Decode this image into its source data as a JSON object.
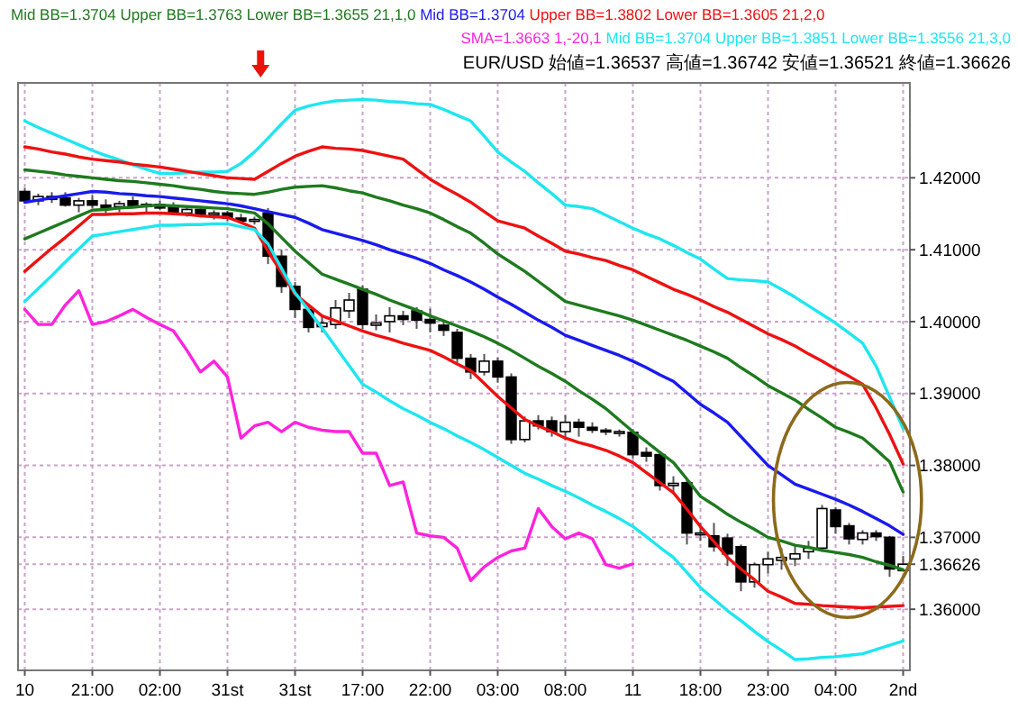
{
  "chart_data": {
    "type": "candlestick",
    "categories": [
      "10",
      null,
      null,
      null,
      null,
      "21:00",
      null,
      null,
      null,
      null,
      "02:00",
      null,
      null,
      null,
      null,
      "31st",
      null,
      null,
      null,
      null,
      "31st",
      null,
      null,
      null,
      null,
      "17:00",
      null,
      null,
      null,
      null,
      "22:00",
      null,
      null,
      null,
      null,
      "03:00",
      null,
      null,
      null,
      null,
      "08:00",
      null,
      null,
      null,
      null,
      "11",
      null,
      null,
      null,
      null,
      "18:00",
      null,
      null,
      null,
      null,
      "23:00",
      null,
      null,
      null,
      null,
      "04:00",
      null,
      null,
      null,
      null,
      "2nd"
    ],
    "ohlc": [
      [
        1.4181,
        1.4186,
        1.4165,
        1.4168
      ],
      [
        1.4168,
        1.4178,
        1.4162,
        1.4174
      ],
      [
        1.4174,
        1.418,
        1.4165,
        1.417
      ],
      [
        1.4172,
        1.418,
        1.416,
        1.4162
      ],
      [
        1.4162,
        1.4172,
        1.4152,
        1.4168
      ],
      [
        1.4168,
        1.4176,
        1.4158,
        1.4162
      ],
      [
        1.4162,
        1.417,
        1.415,
        1.4158
      ],
      [
        1.416,
        1.4168,
        1.4152,
        1.4164
      ],
      [
        1.4168,
        1.4174,
        1.4158,
        1.416
      ],
      [
        1.416,
        1.4166,
        1.415,
        1.4163
      ],
      [
        1.4163,
        1.4168,
        1.4155,
        1.4158
      ],
      [
        1.416,
        1.4166,
        1.415,
        1.4151
      ],
      [
        1.4151,
        1.416,
        1.4146,
        1.4156
      ],
      [
        1.4156,
        1.416,
        1.4145,
        1.4149
      ],
      [
        1.4149,
        1.4155,
        1.4142,
        1.4151
      ],
      [
        1.4151,
        1.4154,
        1.414,
        1.4144
      ],
      [
        1.4144,
        1.415,
        1.4136,
        1.414
      ],
      [
        1.414,
        1.4146,
        1.4135,
        1.4142
      ],
      [
        1.4151,
        1.4158,
        1.408,
        1.4091
      ],
      [
        1.4091,
        1.41,
        1.404,
        1.4049
      ],
      [
        1.4049,
        1.4055,
        1.4005,
        1.4017
      ],
      [
        1.4017,
        1.4025,
        1.3985,
        1.3992
      ],
      [
        1.3993,
        1.401,
        1.3985,
        1.3998
      ],
      [
        1.3996,
        1.403,
        1.399,
        1.4019
      ],
      [
        1.4015,
        1.404,
        1.4005,
        1.403
      ],
      [
        1.4045,
        1.405,
        1.399,
        1.3996
      ],
      [
        1.3995,
        1.401,
        1.3988,
        1.3998
      ],
      [
        1.4,
        1.402,
        1.3985,
        1.4008
      ],
      [
        1.4008,
        1.4015,
        1.3995,
        1.4003
      ],
      [
        1.4015,
        1.402,
        1.399,
        1.4002
      ],
      [
        1.4003,
        1.4018,
        1.3985,
        1.3998
      ],
      [
        1.3995,
        1.4,
        1.398,
        1.3988
      ],
      [
        1.3985,
        1.399,
        1.394,
        1.3949
      ],
      [
        1.3949,
        1.3955,
        1.392,
        1.393
      ],
      [
        1.393,
        1.3955,
        1.3925,
        1.3945
      ],
      [
        1.3945,
        1.395,
        1.3915,
        1.3923
      ],
      [
        1.3923,
        1.3928,
        1.383,
        1.3836
      ],
      [
        1.3836,
        1.3868,
        1.3832,
        1.3862
      ],
      [
        1.3862,
        1.387,
        1.385,
        1.3855
      ],
      [
        1.3862,
        1.3868,
        1.384,
        1.3847
      ],
      [
        1.3847,
        1.387,
        1.3835,
        1.386
      ],
      [
        1.386,
        1.3865,
        1.384,
        1.3853
      ],
      [
        1.3853,
        1.386,
        1.3845,
        1.3849
      ],
      [
        1.3849,
        1.3852,
        1.3842,
        1.3847
      ],
      [
        1.3846,
        1.385,
        1.384,
        1.3847
      ],
      [
        1.3846,
        1.385,
        1.381,
        1.3815
      ],
      [
        1.3818,
        1.3825,
        1.3805,
        1.3813
      ],
      [
        1.3815,
        1.382,
        1.3765,
        1.3772
      ],
      [
        1.3772,
        1.3785,
        1.376,
        1.3775
      ],
      [
        1.3776,
        1.378,
        1.369,
        1.3706
      ],
      [
        1.3704,
        1.372,
        1.3695,
        1.3706
      ],
      [
        1.3702,
        1.372,
        1.368,
        1.3687
      ],
      [
        1.3699,
        1.3705,
        1.366,
        1.3677
      ],
      [
        1.3687,
        1.369,
        1.3625,
        1.3638
      ],
      [
        1.3638,
        1.3665,
        1.363,
        1.3662
      ],
      [
        1.3662,
        1.368,
        1.365,
        1.367
      ],
      [
        1.3668,
        1.3685,
        1.3655,
        1.3672
      ],
      [
        1.367,
        1.369,
        1.366,
        1.3677
      ],
      [
        1.368,
        1.3695,
        1.367,
        1.3685
      ],
      [
        1.3685,
        1.3745,
        1.368,
        1.374
      ],
      [
        1.3738,
        1.3742,
        1.3705,
        1.3715
      ],
      [
        1.3716,
        1.372,
        1.369,
        1.3698
      ],
      [
        1.3697,
        1.371,
        1.369,
        1.3706
      ],
      [
        1.3706,
        1.371,
        1.3695,
        1.3701
      ],
      [
        1.37,
        1.3702,
        1.3645,
        1.3656
      ],
      [
        1.36537,
        1.36742,
        1.36521,
        1.36626
      ]
    ],
    "series": [
      {
        "type": "line",
        "color": "#1ee6f0",
        "values": [
          1.4279,
          1.427,
          1.4262,
          1.4254,
          1.4246,
          1.4238,
          1.4231,
          1.4225,
          1.4218,
          1.4212,
          1.4206,
          1.4206,
          1.4207,
          1.4208,
          1.4208,
          1.4209,
          1.422,
          1.4236,
          1.4255,
          1.4275,
          1.4294,
          1.43,
          1.4304,
          1.4307,
          1.4308,
          1.4309,
          1.4308,
          1.4306,
          1.4305,
          1.4303,
          1.4302,
          1.4295,
          1.4287,
          1.4279,
          1.4258,
          1.4236,
          1.4222,
          1.4209,
          1.4193,
          1.4178,
          1.4162,
          1.416,
          1.4157,
          1.4148,
          1.4139,
          1.413,
          1.4122,
          1.4115,
          1.4106,
          1.4096,
          1.4087,
          1.4073,
          1.406,
          1.4058,
          1.4057,
          1.4055,
          1.4045,
          1.4034,
          1.4022,
          1.401,
          1.3998,
          1.3984,
          1.397,
          1.3938,
          1.3895,
          1.3851
        ]
      },
      {
        "type": "line",
        "color": "#ee1111",
        "values": [
          1.4243,
          1.424,
          1.4236,
          1.4233,
          1.4229,
          1.4226,
          1.4224,
          1.4222,
          1.4219,
          1.4217,
          1.4215,
          1.4212,
          1.4209,
          1.4206,
          1.4203,
          1.42,
          1.4199,
          1.4198,
          1.4209,
          1.422,
          1.423,
          1.4237,
          1.4243,
          1.4241,
          1.424,
          1.4238,
          1.4234,
          1.423,
          1.4226,
          1.4212,
          1.4198,
          1.4187,
          1.4177,
          1.4166,
          1.4153,
          1.414,
          1.4135,
          1.413,
          1.4119,
          1.4109,
          1.4098,
          1.4094,
          1.4089,
          1.4085,
          1.4078,
          1.4072,
          1.4063,
          1.4054,
          1.4045,
          1.4038,
          1.403,
          1.4021,
          1.4013,
          1.4003,
          1.3993,
          1.3983,
          1.3975,
          1.3966,
          1.3955,
          1.3945,
          1.3934,
          1.3924,
          1.3913,
          1.388,
          1.3843,
          1.3802
        ]
      },
      {
        "type": "line",
        "color": "#1e7a1e",
        "values": [
          1.4211,
          1.4209,
          1.4207,
          1.4204,
          1.4202,
          1.42,
          1.4198,
          1.4196,
          1.4195,
          1.4193,
          1.4191,
          1.4189,
          1.4186,
          1.4184,
          1.4181,
          1.4179,
          1.4178,
          1.4177,
          1.418,
          1.4184,
          1.4187,
          1.4188,
          1.4189,
          1.4186,
          1.4182,
          1.4179,
          1.4173,
          1.4168,
          1.4162,
          1.4157,
          1.4151,
          1.4142,
          1.4132,
          1.4123,
          1.4109,
          1.4094,
          1.4082,
          1.407,
          1.4056,
          1.4042,
          1.4028,
          1.4023,
          1.4018,
          1.4013,
          1.4008,
          1.4002,
          1.3995,
          1.3988,
          1.3981,
          1.3974,
          1.3966,
          1.3958,
          1.3949,
          1.3936,
          1.3924,
          1.3911,
          1.3901,
          1.3891,
          1.3878,
          1.3866,
          1.3853,
          1.3846,
          1.3838,
          1.3822,
          1.3805,
          1.3763
        ]
      },
      {
        "type": "line",
        "color": "#1a1aee",
        "values": [
          1.4166,
          1.4169,
          1.4172,
          1.4175,
          1.4178,
          1.4181,
          1.418,
          1.4178,
          1.4177,
          1.4175,
          1.4174,
          1.4172,
          1.417,
          1.4168,
          1.4166,
          1.4164,
          1.4161,
          1.4157,
          1.4153,
          1.4149,
          1.4145,
          1.4137,
          1.4128,
          1.4123,
          1.4118,
          1.4113,
          1.4107,
          1.41,
          1.4094,
          1.4088,
          1.4081,
          1.4072,
          1.4064,
          1.4055,
          1.4045,
          1.4034,
          1.4024,
          1.4013,
          1.4002,
          1.3992,
          1.3981,
          1.3974,
          1.3967,
          1.396,
          1.3953,
          1.3945,
          1.3936,
          1.3926,
          1.3917,
          1.3901,
          1.3885,
          1.3873,
          1.386,
          1.384,
          1.382,
          1.38,
          1.3787,
          1.3774,
          1.3767,
          1.376,
          1.3753,
          1.3745,
          1.3736,
          1.3726,
          1.3716,
          1.3704
        ]
      },
      {
        "type": "line",
        "color": "#1e7a1e",
        "values": [
          1.4115,
          1.4123,
          1.4131,
          1.4139,
          1.4147,
          1.4155,
          1.4156,
          1.4158,
          1.4159,
          1.4161,
          1.4162,
          1.4161,
          1.416,
          1.4159,
          1.4158,
          1.4157,
          1.4154,
          1.4151,
          1.4136,
          1.4117,
          1.4098,
          1.4082,
          1.4066,
          1.4059,
          1.4052,
          1.4045,
          1.4038,
          1.403,
          1.4023,
          1.4016,
          1.4008,
          1.4001,
          1.3994,
          1.3987,
          1.3979,
          1.397,
          1.396,
          1.3949,
          1.3938,
          1.3928,
          1.3917,
          1.3904,
          1.3892,
          1.3879,
          1.3863,
          1.3847,
          1.3833,
          1.3818,
          1.3804,
          1.3781,
          1.3757,
          1.3745,
          1.3732,
          1.3721,
          1.3711,
          1.37,
          1.3695,
          1.3689,
          1.3686,
          1.3682,
          1.3679,
          1.3676,
          1.3672,
          1.3666,
          1.3661,
          1.3655
        ]
      },
      {
        "type": "line",
        "color": "#ee1111",
        "values": [
          1.407,
          1.4086,
          1.4102,
          1.4117,
          1.4133,
          1.4149,
          1.4149,
          1.415,
          1.415,
          1.4151,
          1.4151,
          1.415,
          1.4149,
          1.4147,
          1.4146,
          1.4145,
          1.4138,
          1.413,
          1.4098,
          1.4068,
          1.4038,
          1.4023,
          1.4008,
          1.4001,
          1.3994,
          1.3987,
          1.3981,
          1.3976,
          1.397,
          1.3965,
          1.396,
          1.3951,
          1.3941,
          1.3932,
          1.3914,
          1.3896,
          1.388,
          1.3864,
          1.3855,
          1.3847,
          1.3838,
          1.3832,
          1.3827,
          1.3821,
          1.3813,
          1.3804,
          1.379,
          1.3776,
          1.3762,
          1.3739,
          1.3715,
          1.3694,
          1.3672,
          1.3656,
          1.3641,
          1.3625,
          1.3617,
          1.3608,
          1.3607,
          1.3605,
          1.3604,
          1.3603,
          1.3602,
          1.3603,
          1.3604,
          1.3605
        ]
      },
      {
        "type": "line",
        "color": "#1ee6f0",
        "values": [
          1.4028,
          1.4046,
          1.4064,
          1.4083,
          1.4101,
          1.4119,
          1.4122,
          1.4125,
          1.4128,
          1.4131,
          1.4134,
          1.4134,
          1.4135,
          1.4135,
          1.4136,
          1.4136,
          1.4132,
          1.4128,
          1.4108,
          1.4074,
          1.404,
          1.4016,
          1.3991,
          1.3965,
          1.3939,
          1.3913,
          1.3902,
          1.389,
          1.3879,
          1.387,
          1.386,
          1.3851,
          1.3841,
          1.3832,
          1.3822,
          1.3811,
          1.38,
          1.3789,
          1.3781,
          1.3772,
          1.3764,
          1.3755,
          1.3745,
          1.3736,
          1.3726,
          1.3715,
          1.3701,
          1.3686,
          1.3672,
          1.3651,
          1.363,
          1.3614,
          1.3598,
          1.3584,
          1.3569,
          1.3555,
          1.3543,
          1.353,
          1.3531,
          1.3533,
          1.3534,
          1.3536,
          1.3538,
          1.3544,
          1.355,
          1.3556
        ]
      },
      {
        "type": "line",
        "color": "#ff22dd",
        "values": [
          1.4017,
          1.3996,
          1.3996,
          1.4023,
          1.4043,
          1.3996,
          1.4,
          1.4008,
          1.4017,
          1.4006,
          1.3996,
          1.3987,
          1.396,
          1.393,
          1.3945,
          1.3923,
          1.3838,
          1.3855,
          1.386,
          1.3847,
          1.386,
          1.3853,
          1.3849,
          1.3847,
          1.3847,
          1.3817,
          1.3817,
          1.3772,
          1.3777,
          1.3706,
          1.3702,
          1.37,
          1.3685,
          1.364,
          1.3659,
          1.3672,
          1.3681,
          1.3685,
          1.374,
          1.3715,
          1.3698,
          1.3706,
          1.3698,
          1.3662,
          1.3657,
          1.3663,
          null,
          null,
          null,
          null,
          null,
          null,
          null,
          null,
          null,
          null,
          null,
          null,
          null,
          null,
          null,
          null,
          null,
          null,
          null,
          null
        ]
      }
    ],
    "ylim": [
      1.3515,
      1.4332
    ],
    "yticks": [
      {
        "value": 1.36,
        "label": "1.36000"
      },
      {
        "value": 1.36626,
        "label": "1.36626"
      },
      {
        "value": 1.37,
        "label": "1.37000"
      },
      {
        "value": 1.38,
        "label": "1.38000"
      },
      {
        "value": 1.39,
        "label": "1.39000"
      },
      {
        "value": 1.4,
        "label": "1.40000"
      },
      {
        "value": 1.41,
        "label": "1.41000"
      },
      {
        "value": 1.42,
        "label": "1.42000"
      }
    ],
    "grid": true,
    "annotations": [
      "Mid BB=1.3704 Upper BB=1.3763 Lower BB=1.3655 21,1,0",
      "Mid BB=1.3704",
      "Upper BB=1.3802 Lower BB=1.3605 21,2,0",
      "EUR/USD 始値=1.36537 高値=1.36742 安値=1.36521 終値=1.36626",
      "SMA=1.3663 1,-20,1",
      "Mid BB=1.3704 Upper BB=1.3851 Lower BB=1.3556 21,3,0"
    ]
  }
}
